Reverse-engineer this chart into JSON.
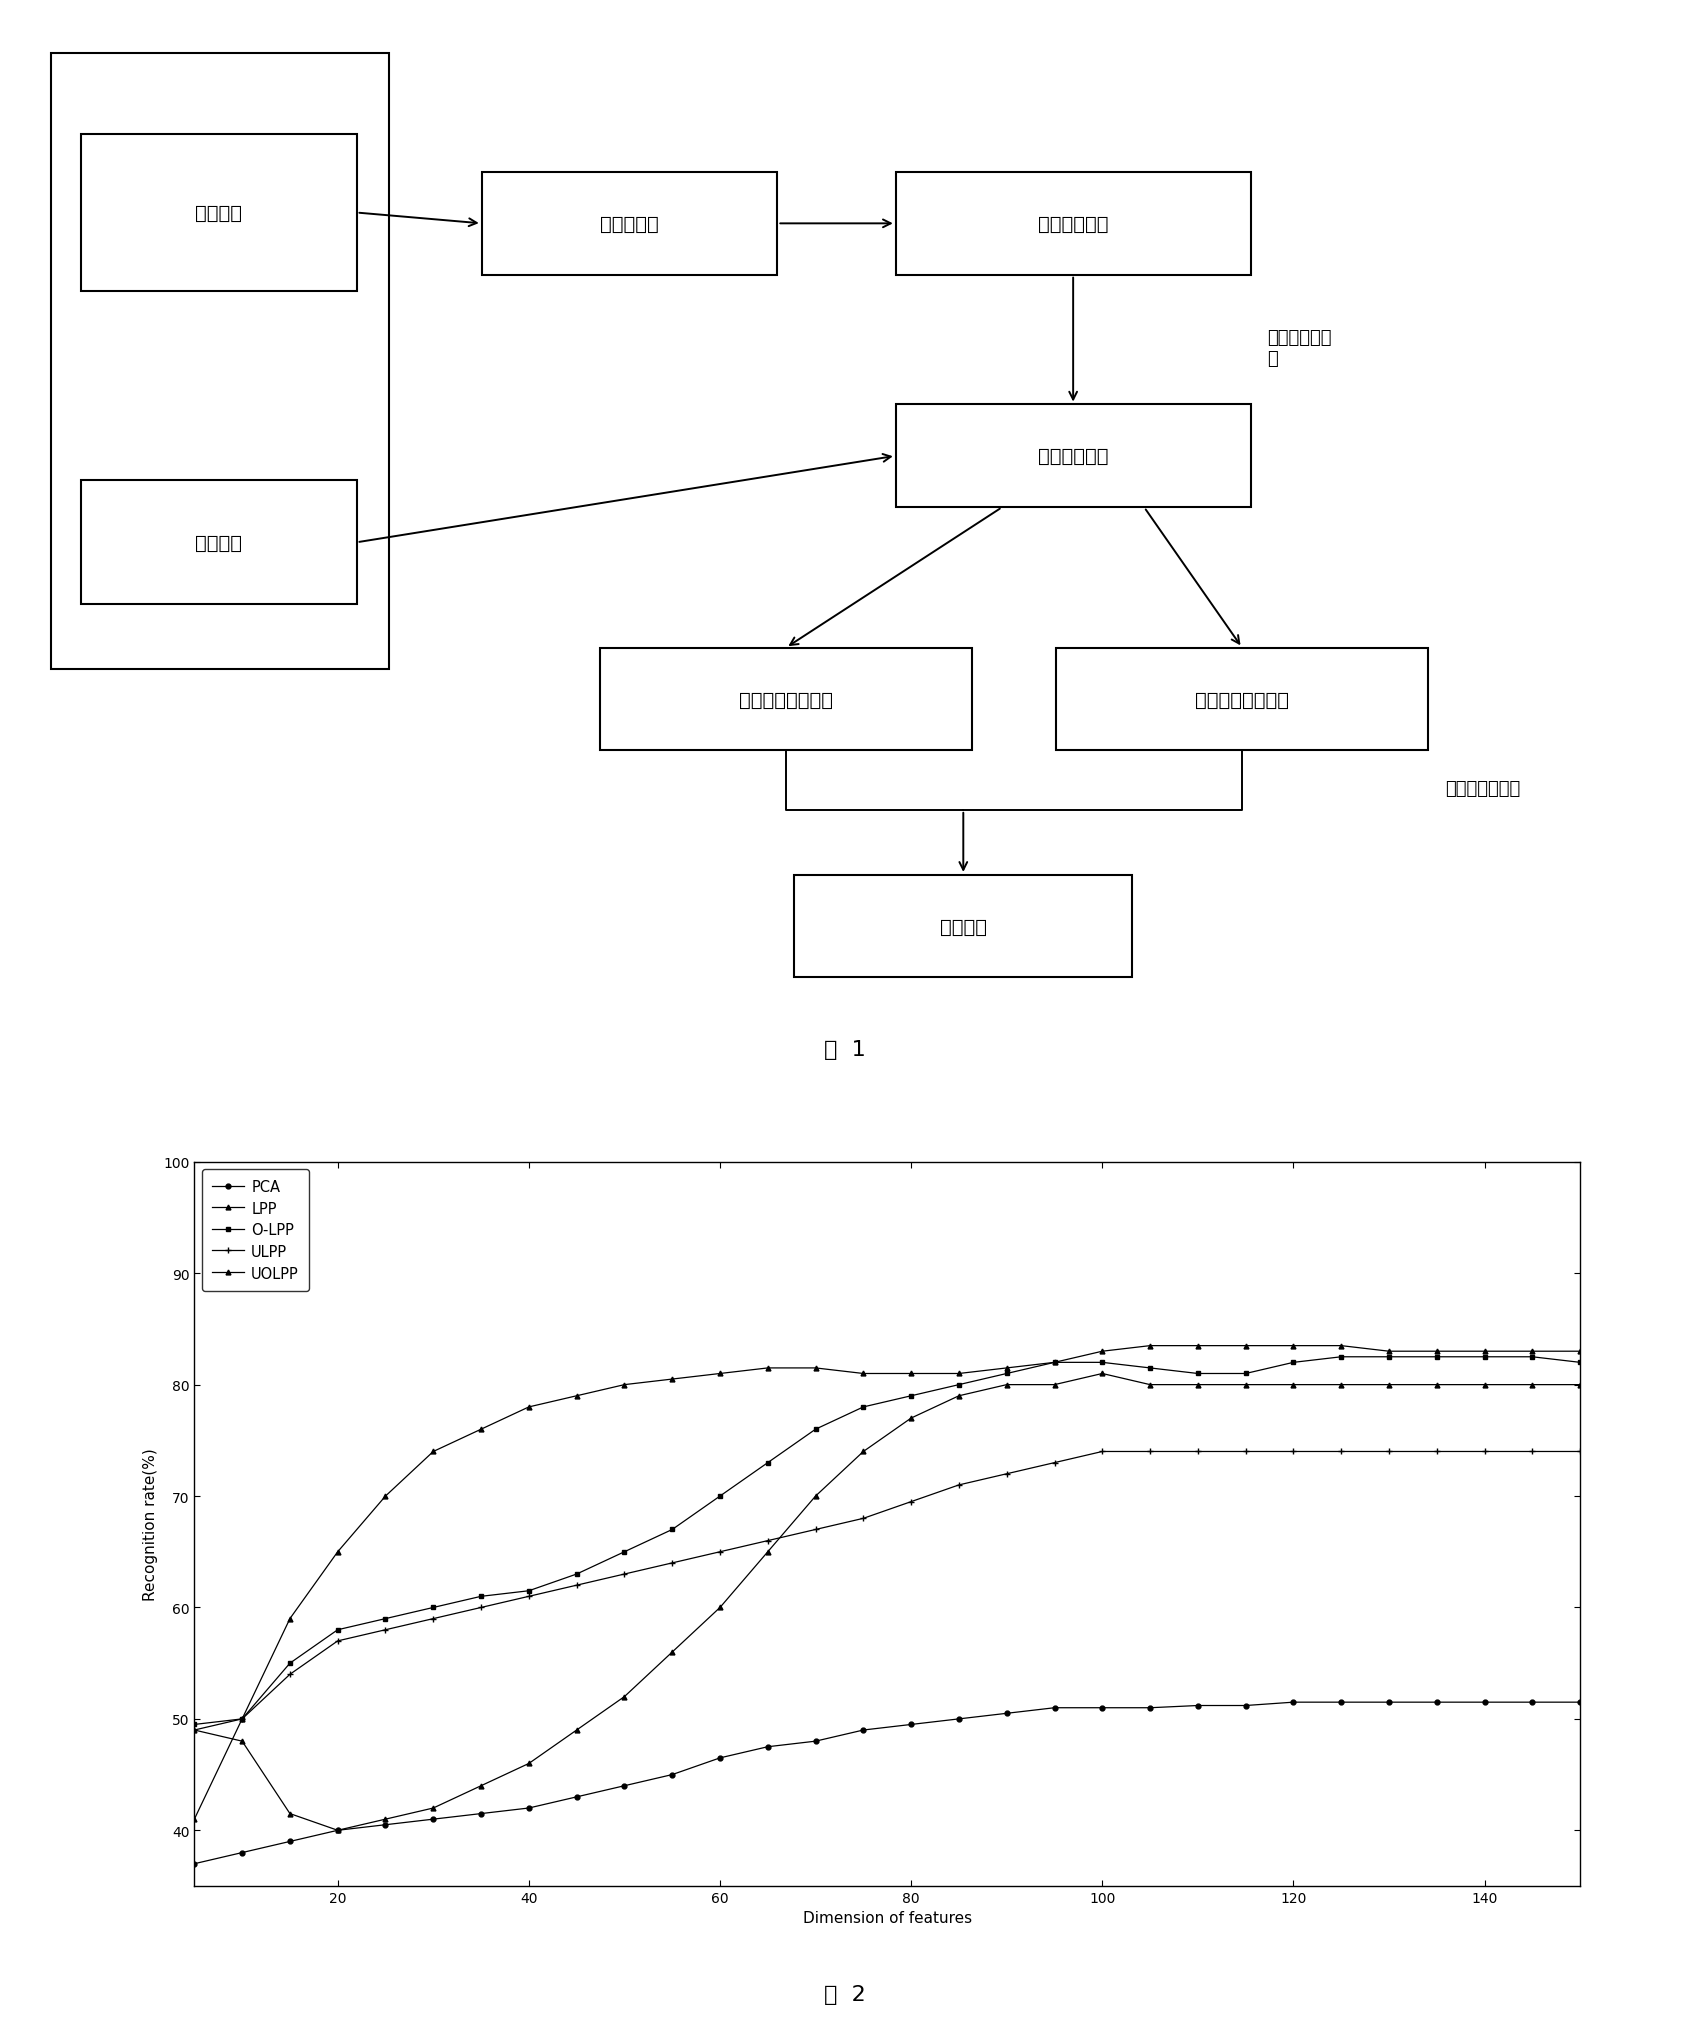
{
  "fig1_caption": "图  1",
  "fig2_caption": "图  2",
  "annotation_stat": "统计不相关约\n束",
  "annotation_cls": "最小距离分类器",
  "xlabel": "Dimension of features",
  "ylabel": "Recognition rate(%)",
  "ylim": [
    35,
    100
  ],
  "xlim": [
    5,
    150
  ],
  "yticks": [
    40,
    50,
    60,
    70,
    80,
    90,
    100
  ],
  "xticks": [
    20,
    40,
    60,
    80,
    100,
    120,
    140
  ],
  "series": [
    {
      "label": "PCA",
      "marker": "o",
      "x": [
        5,
        10,
        15,
        20,
        25,
        30,
        35,
        40,
        45,
        50,
        55,
        60,
        65,
        70,
        75,
        80,
        85,
        90,
        95,
        100,
        105,
        110,
        115,
        120,
        125,
        130,
        135,
        140,
        145,
        150
      ],
      "y": [
        37,
        38,
        39,
        40,
        40.5,
        41,
        41.5,
        42,
        43,
        44,
        45,
        46.5,
        47.5,
        48,
        49,
        49.5,
        50,
        50.5,
        51,
        51,
        51,
        51.2,
        51.2,
        51.5,
        51.5,
        51.5,
        51.5,
        51.5,
        51.5,
        51.5
      ]
    },
    {
      "label": "LPP",
      "marker": "^",
      "x": [
        5,
        10,
        15,
        20,
        25,
        30,
        35,
        40,
        45,
        50,
        55,
        60,
        65,
        70,
        75,
        80,
        85,
        90,
        95,
        100,
        105,
        110,
        115,
        120,
        125,
        130,
        135,
        140,
        145,
        150
      ],
      "y": [
        49,
        48,
        41.5,
        40,
        41,
        42,
        44,
        46,
        49,
        52,
        56,
        60,
        65,
        70,
        74,
        77,
        79,
        80,
        80,
        81,
        80,
        80,
        80,
        80,
        80,
        80,
        80,
        80,
        80,
        80
      ]
    },
    {
      "label": "O-LPP",
      "marker": "s",
      "x": [
        5,
        10,
        15,
        20,
        25,
        30,
        35,
        40,
        45,
        50,
        55,
        60,
        65,
        70,
        75,
        80,
        85,
        90,
        95,
        100,
        105,
        110,
        115,
        120,
        125,
        130,
        135,
        140,
        145,
        150
      ],
      "y": [
        49.5,
        50,
        55,
        58,
        59,
        60,
        61,
        61.5,
        63,
        65,
        67,
        70,
        73,
        76,
        78,
        79,
        80,
        81,
        82,
        82,
        81.5,
        81,
        81,
        82,
        82.5,
        82.5,
        82.5,
        82.5,
        82.5,
        82
      ]
    },
    {
      "label": "ULPP",
      "marker": "+",
      "x": [
        5,
        10,
        15,
        20,
        25,
        30,
        35,
        40,
        45,
        50,
        55,
        60,
        65,
        70,
        75,
        80,
        85,
        90,
        95,
        100,
        105,
        110,
        115,
        120,
        125,
        130,
        135,
        140,
        145,
        150
      ],
      "y": [
        49,
        50,
        54,
        57,
        58,
        59,
        60,
        61,
        62,
        63,
        64,
        65,
        66,
        67,
        68,
        69.5,
        71,
        72,
        73,
        74,
        74,
        74,
        74,
        74,
        74,
        74,
        74,
        74,
        74,
        74
      ]
    },
    {
      "label": "UOLPP",
      "marker": "^",
      "x": [
        5,
        10,
        15,
        20,
        25,
        30,
        35,
        40,
        45,
        50,
        55,
        60,
        65,
        70,
        75,
        80,
        85,
        90,
        95,
        100,
        105,
        110,
        115,
        120,
        125,
        130,
        135,
        140,
        145,
        150
      ],
      "y": [
        41,
        50,
        59,
        65,
        70,
        74,
        76,
        78,
        79,
        80,
        80.5,
        81,
        81.5,
        81.5,
        81,
        81,
        81,
        81.5,
        82,
        83,
        83.5,
        83.5,
        83.5,
        83.5,
        83.5,
        83,
        83,
        83,
        83,
        83
      ]
    }
  ]
}
